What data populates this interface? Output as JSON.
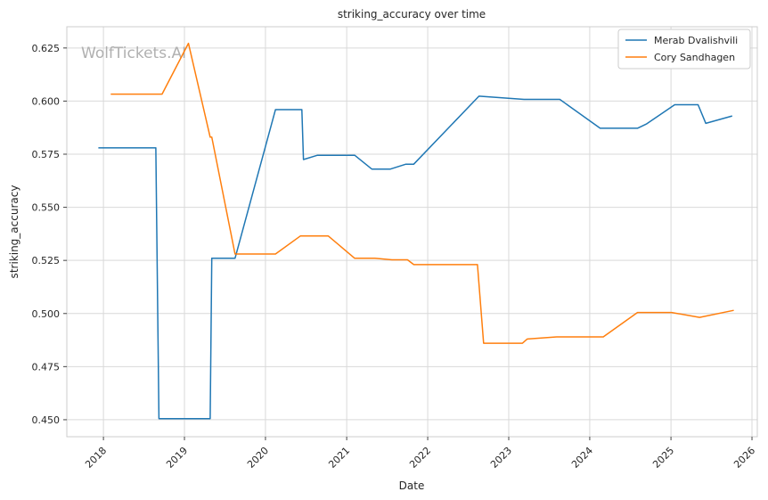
{
  "chart_data": {
    "type": "line",
    "title": "striking_accuracy over time",
    "xlabel": "Date",
    "ylabel": "striking_accuracy",
    "watermark": "WolfTickets.AI",
    "xlim": [
      "2017-07-20",
      "2026-01-25"
    ],
    "ylim": [
      0.442,
      0.635
    ],
    "x_ticks": [
      "2018",
      "2019",
      "2020",
      "2021",
      "2022",
      "2023",
      "2024",
      "2025",
      "2026"
    ],
    "y_ticks": [
      "0.450",
      "0.475",
      "0.500",
      "0.525",
      "0.550",
      "0.575",
      "0.600",
      "0.625"
    ],
    "grid": true,
    "legend_position": "top-right",
    "series": [
      {
        "name": "Merab Dvalishvili",
        "color": "#1f77b4",
        "points": [
          [
            "2017-12-09",
            0.578
          ],
          [
            "2018-08-25",
            0.578
          ],
          [
            "2018-09-08",
            0.4505
          ],
          [
            "2019-04-27",
            0.4505
          ],
          [
            "2019-05-04",
            0.526
          ],
          [
            "2019-08-17",
            0.526
          ],
          [
            "2020-02-15",
            0.596
          ],
          [
            "2020-06-13",
            0.596
          ],
          [
            "2020-06-20",
            0.5725
          ],
          [
            "2020-08-22",
            0.5745
          ],
          [
            "2021-02-06",
            0.5745
          ],
          [
            "2021-04-24",
            0.568
          ],
          [
            "2021-07-17",
            0.568
          ],
          [
            "2021-09-25",
            0.5703
          ],
          [
            "2021-10-30",
            0.5703
          ],
          [
            "2022-08-20",
            0.6023
          ],
          [
            "2023-03-11",
            0.6008
          ],
          [
            "2023-08-19",
            0.6008
          ],
          [
            "2024-02-17",
            0.5872
          ],
          [
            "2024-08-03",
            0.5872
          ],
          [
            "2024-09-14",
            0.5893
          ],
          [
            "2025-01-18",
            0.5983
          ],
          [
            "2025-05-03",
            0.5983
          ],
          [
            "2025-06-07",
            0.5895
          ],
          [
            "2025-10-04",
            0.593
          ]
        ]
      },
      {
        "name": "Cory Sandhagen",
        "color": "#ff7f0e",
        "points": [
          [
            "2018-02-03",
            0.6033
          ],
          [
            "2018-09-22",
            0.6033
          ],
          [
            "2019-01-19",
            0.6272
          ],
          [
            "2019-04-27",
            0.583
          ],
          [
            "2019-05-04",
            0.583
          ],
          [
            "2019-08-17",
            0.528
          ],
          [
            "2020-02-15",
            0.528
          ],
          [
            "2020-06-06",
            0.5365
          ],
          [
            "2020-10-10",
            0.5365
          ],
          [
            "2021-02-06",
            0.526
          ],
          [
            "2021-05-08",
            0.526
          ],
          [
            "2021-07-24",
            0.5253
          ],
          [
            "2021-10-02",
            0.5253
          ],
          [
            "2021-10-30",
            0.523
          ],
          [
            "2022-08-13",
            0.523
          ],
          [
            "2022-09-10",
            0.486
          ],
          [
            "2023-03-04",
            0.486
          ],
          [
            "2023-03-25",
            0.488
          ],
          [
            "2023-08-05",
            0.489
          ],
          [
            "2024-03-02",
            0.489
          ],
          [
            "2024-08-03",
            0.5005
          ],
          [
            "2025-01-04",
            0.5005
          ],
          [
            "2025-05-10",
            0.4982
          ],
          [
            "2025-10-11",
            0.5015
          ]
        ]
      }
    ]
  }
}
